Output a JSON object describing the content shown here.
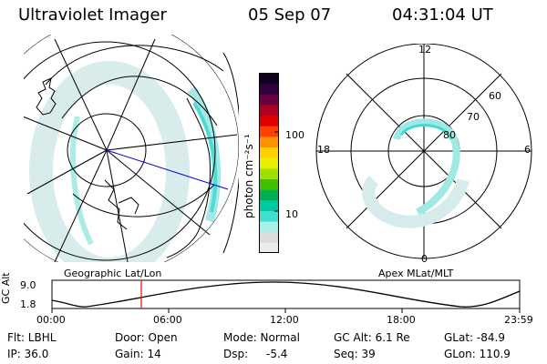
{
  "header": {
    "instrument": "Ultraviolet Imager",
    "date": "05 Sep 07",
    "time": "04:31:04 UT"
  },
  "colorbar": {
    "unit_label": "photon cm⁻²s⁻¹",
    "ticks": [
      "100",
      "10"
    ],
    "colors": [
      "#ececec",
      "#dcdcdc",
      "#a8f0e8",
      "#40e0d0",
      "#00c8a0",
      "#00b050",
      "#40c000",
      "#a0e000",
      "#e8f000",
      "#ffd000",
      "#ff9000",
      "#ff4000",
      "#e00000",
      "#b00020",
      "#6a0040",
      "#300040",
      "#100020"
    ]
  },
  "left_panel": {
    "label": "Geographic Lat/Lon"
  },
  "right_panel": {
    "label": "Apex MLat/MLT",
    "mlt_labels": {
      "top": "12",
      "bottom": "0",
      "left": "18",
      "right": "6"
    },
    "lat_labels": [
      "60",
      "70",
      "80"
    ]
  },
  "altitude_plot": {
    "ylabel": "GC Alt",
    "yticks": [
      "9.0",
      "1.8"
    ],
    "xticks": [
      "00:00",
      "06:00",
      "12:00",
      "18:00",
      "23:59"
    ],
    "marker_color": "#ff0000"
  },
  "footer": {
    "row1": [
      "Flt: LBHL",
      "Door: Open",
      "Mode: Normal",
      "GC Alt: 6.1 Re",
      "GLat: -84.9"
    ],
    "row2": [
      "IP: 36.0",
      "Gain: 14",
      "Dsp:",
      "-5.4",
      "Seq: 39",
      "GLon: 110.9"
    ]
  }
}
